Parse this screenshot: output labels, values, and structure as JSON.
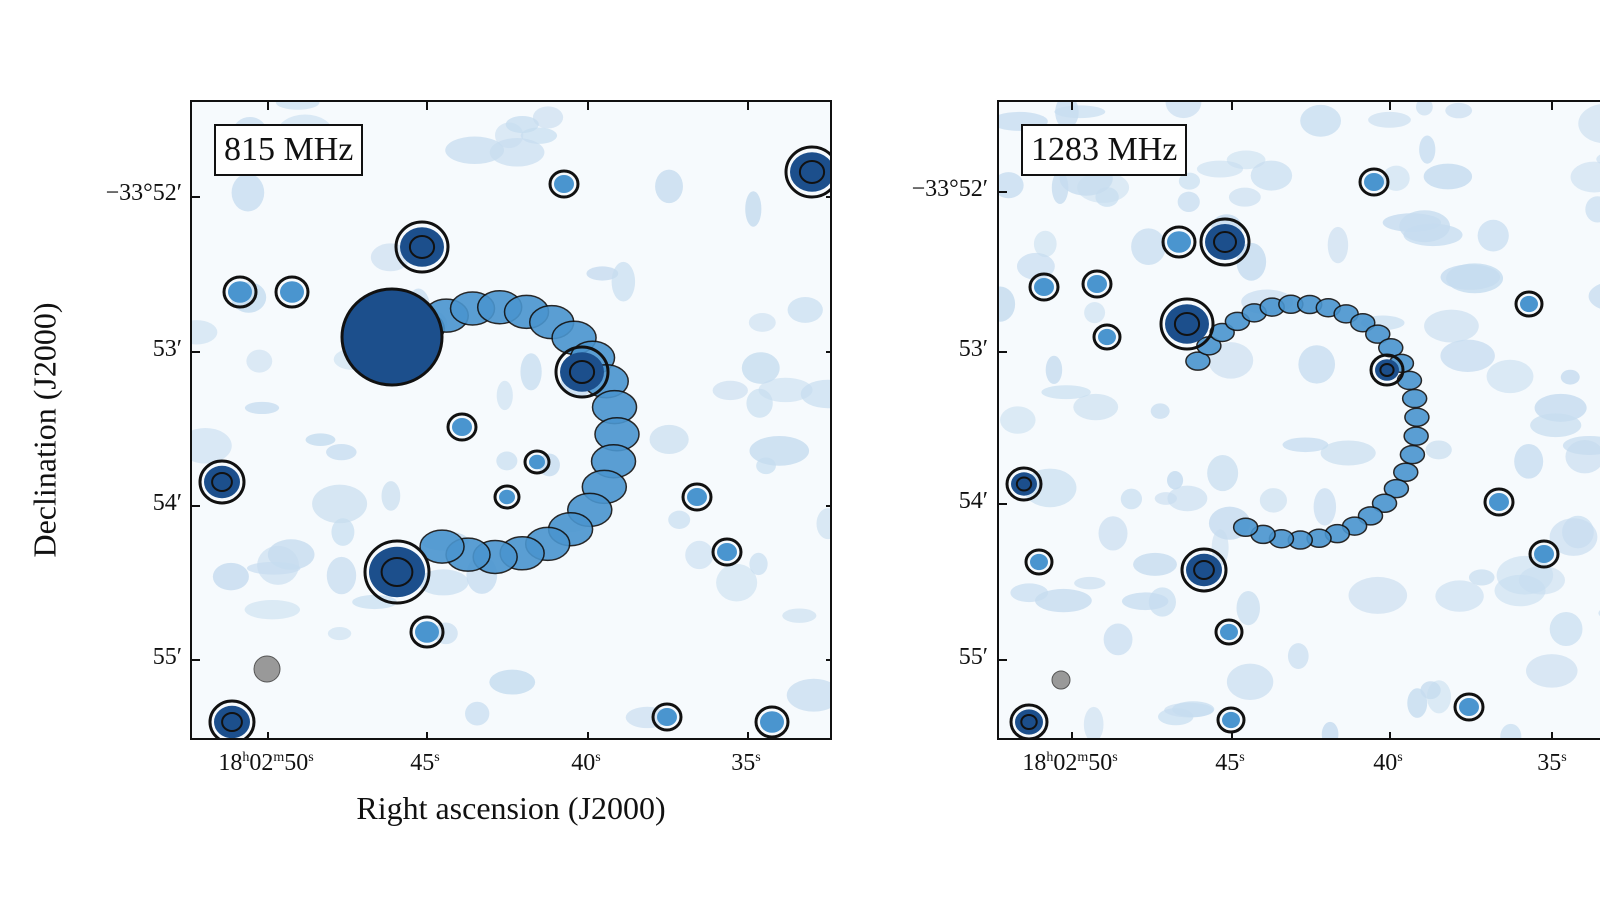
{
  "figure": {
    "ylabel": "Declination (J2000)",
    "xlabel": "Right ascension (J2000)",
    "yticks": [
      "−33°52′",
      "53′",
      "54′",
      "55′"
    ],
    "xticks": [
      {
        "main": "18",
        "h": "h",
        "m_val": "02",
        "m": "m",
        "s_val": "50",
        "s": "s"
      },
      {
        "s_val": "45",
        "s": "s"
      },
      {
        "s_val": "40",
        "s": "s"
      },
      {
        "s_val": "35",
        "s": "s"
      }
    ],
    "panels": [
      {
        "label": "815 MHz"
      },
      {
        "label": "1283 MHz"
      }
    ],
    "colors": {
      "faint": "#c6dcef",
      "mid": "#4a95cf",
      "bright": "#1c4f8c",
      "contour": "#111111",
      "beam": "#999999"
    }
  }
}
